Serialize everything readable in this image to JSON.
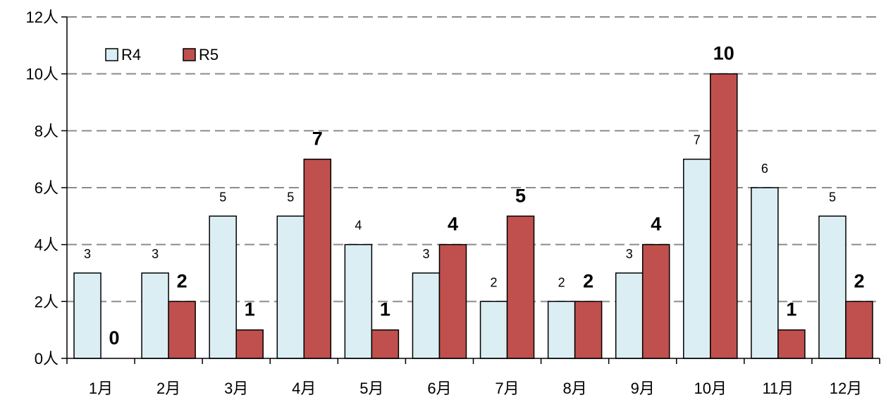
{
  "chart_data": {
    "type": "bar",
    "categories": [
      "1月",
      "2月",
      "3月",
      "4月",
      "5月",
      "6月",
      "7月",
      "8月",
      "9月",
      "10月",
      "11月",
      "12月"
    ],
    "series": [
      {
        "name": "R4",
        "values": [
          3,
          3,
          5,
          5,
          4,
          3,
          2,
          2,
          3,
          7,
          6,
          5
        ],
        "color": "#dbeef4"
      },
      {
        "name": "R5",
        "values": [
          0,
          2,
          1,
          7,
          1,
          4,
          5,
          2,
          4,
          10,
          1,
          2
        ],
        "color": "#c0504d"
      }
    ],
    "y_ticks": [
      "0人",
      "2人",
      "4人",
      "6人",
      "8人",
      "10人",
      "12人"
    ],
    "ylim": [
      0,
      12
    ],
    "y_step": 2,
    "grid": true,
    "legend": "top-left",
    "data_labels": true
  }
}
